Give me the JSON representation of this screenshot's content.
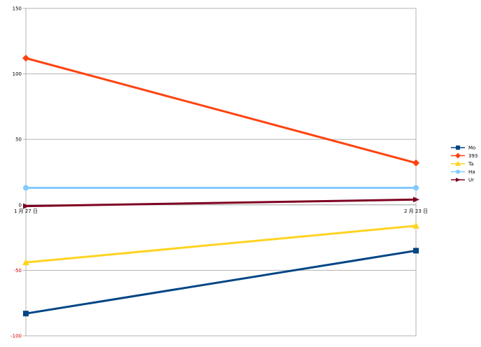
{
  "chart_data": {
    "type": "line",
    "title": "",
    "xlabel": "",
    "ylabel": "",
    "categories": [
      "1 月 27 日",
      "2 月 23 日"
    ],
    "ylim": [
      -100,
      150
    ],
    "yticks": [
      -100,
      -50,
      0,
      50,
      100,
      150
    ],
    "grid": true,
    "legend_position": "right",
    "series": [
      {
        "name": "Mo",
        "values": [
          -83,
          -35
        ],
        "color": "#004586",
        "marker": "square"
      },
      {
        "name": "393",
        "values": [
          112,
          32
        ],
        "color": "#ff420e",
        "marker": "diamond"
      },
      {
        "name": "Ta",
        "values": [
          -44,
          -16
        ],
        "color": "#ffd320",
        "marker": "triangle"
      },
      {
        "name": "Ha",
        "values": [
          13,
          13
        ],
        "color": "#83caff",
        "marker": "circle"
      },
      {
        "name": "Ur",
        "values": [
          -1,
          4
        ],
        "color": "#7e0021",
        "marker": "arrow"
      }
    ]
  }
}
